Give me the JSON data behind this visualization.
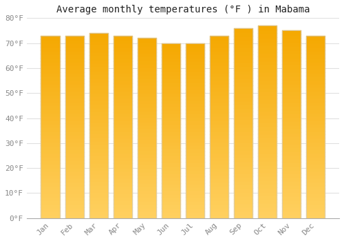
{
  "months": [
    "Jan",
    "Feb",
    "Mar",
    "Apr",
    "May",
    "Jun",
    "Jul",
    "Aug",
    "Sep",
    "Oct",
    "Nov",
    "Dec"
  ],
  "values": [
    73,
    73,
    74,
    73,
    72,
    70,
    70,
    73,
    76,
    77,
    75,
    73
  ],
  "bar_color_top": "#F5A800",
  "bar_color_bottom": "#FFD060",
  "bar_edge_color": "#CCCCCC",
  "title": "Average monthly temperatures (°F ) in Mabama",
  "ylim": [
    0,
    80
  ],
  "yticks": [
    0,
    10,
    20,
    30,
    40,
    50,
    60,
    70,
    80
  ],
  "ytick_labels": [
    "0°F",
    "10°F",
    "20°F",
    "30°F",
    "40°F",
    "50°F",
    "60°F",
    "70°F",
    "80°F"
  ],
  "background_color": "#FFFFFF",
  "plot_bg_color": "#FFFFFF",
  "grid_color": "#E0E0E0",
  "title_fontsize": 10,
  "tick_fontsize": 8,
  "tick_color": "#888888"
}
